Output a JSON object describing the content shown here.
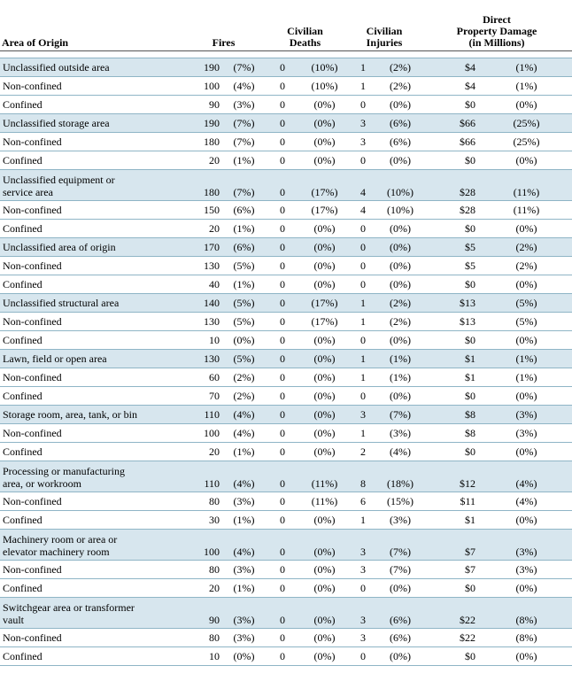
{
  "headers": {
    "area": "Area of Origin",
    "fires": "Fires",
    "deaths": "Civilian\nDeaths",
    "injuries": "Civilian\nInjuries",
    "damage": "Direct\nProperty Damage\n(in Millions)"
  },
  "rows": [
    {
      "area": "Unclassified outside area",
      "cat": true,
      "fires": "190",
      "fires_pct": "(7%)",
      "deaths": "0",
      "deaths_pct": "(10%)",
      "injuries": "1",
      "injuries_pct": "(2%)",
      "damage": "$4",
      "damage_pct": "(1%)"
    },
    {
      "area": "Non-confined",
      "fires": "100",
      "fires_pct": "(4%)",
      "deaths": "0",
      "deaths_pct": "(10%)",
      "injuries": "1",
      "injuries_pct": "(2%)",
      "damage": "$4",
      "damage_pct": "(1%)"
    },
    {
      "area": "Confined",
      "fires": "90",
      "fires_pct": "(3%)",
      "deaths": "0",
      "deaths_pct": "(0%)",
      "injuries": "0",
      "injuries_pct": "(0%)",
      "damage": "$0",
      "damage_pct": "(0%)"
    },
    {
      "area": "Unclassified storage area",
      "cat": true,
      "fires": "190",
      "fires_pct": "(7%)",
      "deaths": "0",
      "deaths_pct": "(0%)",
      "injuries": "3",
      "injuries_pct": "(6%)",
      "damage": "$66",
      "damage_pct": "(25%)"
    },
    {
      "area": "Non-confined",
      "fires": "180",
      "fires_pct": "(7%)",
      "deaths": "0",
      "deaths_pct": "(0%)",
      "injuries": "3",
      "injuries_pct": "(6%)",
      "damage": "$66",
      "damage_pct": "(25%)"
    },
    {
      "area": "Confined",
      "fires": "20",
      "fires_pct": "(1%)",
      "deaths": "0",
      "deaths_pct": "(0%)",
      "injuries": "0",
      "injuries_pct": "(0%)",
      "damage": "$0",
      "damage_pct": "(0%)"
    },
    {
      "area": "Unclassified equipment or\n    service area",
      "cat": true,
      "tall": true,
      "fires": "180",
      "fires_pct": "(7%)",
      "deaths": "0",
      "deaths_pct": "(17%)",
      "injuries": "4",
      "injuries_pct": "(10%)",
      "damage": "$28",
      "damage_pct": "(11%)"
    },
    {
      "area": "Non-confined",
      "fires": "150",
      "fires_pct": "(6%)",
      "deaths": "0",
      "deaths_pct": "(17%)",
      "injuries": "4",
      "injuries_pct": "(10%)",
      "damage": "$28",
      "damage_pct": "(11%)"
    },
    {
      "area": "Confined",
      "fires": "20",
      "fires_pct": "(1%)",
      "deaths": "0",
      "deaths_pct": "(0%)",
      "injuries": "0",
      "injuries_pct": "(0%)",
      "damage": "$0",
      "damage_pct": "(0%)"
    },
    {
      "area": "Unclassified area of origin",
      "cat": true,
      "fires": "170",
      "fires_pct": "(6%)",
      "deaths": "0",
      "deaths_pct": "(0%)",
      "injuries": "0",
      "injuries_pct": "(0%)",
      "damage": "$5",
      "damage_pct": "(2%)"
    },
    {
      "area": "Non-confined",
      "fires": "130",
      "fires_pct": "(5%)",
      "deaths": "0",
      "deaths_pct": "(0%)",
      "injuries": "0",
      "injuries_pct": "(0%)",
      "damage": "$5",
      "damage_pct": "(2%)"
    },
    {
      "area": "Confined",
      "fires": "40",
      "fires_pct": "(1%)",
      "deaths": "0",
      "deaths_pct": "(0%)",
      "injuries": "0",
      "injuries_pct": "(0%)",
      "damage": "$0",
      "damage_pct": "(0%)"
    },
    {
      "area": "Unclassified structural area",
      "cat": true,
      "fires": "140",
      "fires_pct": "(5%)",
      "deaths": "0",
      "deaths_pct": "(17%)",
      "injuries": "1",
      "injuries_pct": "(2%)",
      "damage": "$13",
      "damage_pct": "(5%)"
    },
    {
      "area": "Non-confined",
      "fires": "130",
      "fires_pct": "(5%)",
      "deaths": "0",
      "deaths_pct": "(17%)",
      "injuries": "1",
      "injuries_pct": "(2%)",
      "damage": "$13",
      "damage_pct": "(5%)"
    },
    {
      "area": "Confined",
      "fires": "10",
      "fires_pct": "(0%)",
      "deaths": "0",
      "deaths_pct": "(0%)",
      "injuries": "0",
      "injuries_pct": "(0%)",
      "damage": "$0",
      "damage_pct": "(0%)"
    },
    {
      "area": "Lawn, field or open area",
      "cat": true,
      "fires": "130",
      "fires_pct": "(5%)",
      "deaths": "0",
      "deaths_pct": "(0%)",
      "injuries": "1",
      "injuries_pct": "(1%)",
      "damage": "$1",
      "damage_pct": "(1%)"
    },
    {
      "area": "Non-confined",
      "fires": "60",
      "fires_pct": "(2%)",
      "deaths": "0",
      "deaths_pct": "(0%)",
      "injuries": "1",
      "injuries_pct": "(1%)",
      "damage": "$1",
      "damage_pct": "(1%)"
    },
    {
      "area": "Confined",
      "fires": "70",
      "fires_pct": "(2%)",
      "deaths": "0",
      "deaths_pct": "(0%)",
      "injuries": "0",
      "injuries_pct": "(0%)",
      "damage": "$0",
      "damage_pct": "(0%)"
    },
    {
      "area": "Storage room, area, tank, or bin",
      "cat": true,
      "fires": "110",
      "fires_pct": "(4%)",
      "deaths": "0",
      "deaths_pct": "(0%)",
      "injuries": "3",
      "injuries_pct": "(7%)",
      "damage": "$8",
      "damage_pct": "(3%)"
    },
    {
      "area": "Non-confined",
      "fires": "100",
      "fires_pct": "(4%)",
      "deaths": "0",
      "deaths_pct": "(0%)",
      "injuries": "1",
      "injuries_pct": "(3%)",
      "damage": "$8",
      "damage_pct": "(3%)"
    },
    {
      "area": "Confined",
      "fires": "20",
      "fires_pct": "(1%)",
      "deaths": "0",
      "deaths_pct": "(0%)",
      "injuries": "2",
      "injuries_pct": "(4%)",
      "damage": "$0",
      "damage_pct": "(0%)"
    },
    {
      "area": "Processing or manufacturing\n    area, or workroom",
      "cat": true,
      "tall": true,
      "fires": "110",
      "fires_pct": "(4%)",
      "deaths": "0",
      "deaths_pct": "(11%)",
      "injuries": "8",
      "injuries_pct": "(18%)",
      "damage": "$12",
      "damage_pct": "(4%)"
    },
    {
      "area": "Non-confined",
      "fires": "80",
      "fires_pct": "(3%)",
      "deaths": "0",
      "deaths_pct": "(11%)",
      "injuries": "6",
      "injuries_pct": "(15%)",
      "damage": "$11",
      "damage_pct": "(4%)"
    },
    {
      "area": "Confined",
      "fires": "30",
      "fires_pct": "(1%)",
      "deaths": "0",
      "deaths_pct": "(0%)",
      "injuries": "1",
      "injuries_pct": "(3%)",
      "damage": "$1",
      "damage_pct": "(0%)"
    },
    {
      "area": "Machinery room or area or\n    elevator machinery room",
      "cat": true,
      "tall": true,
      "fires": "100",
      "fires_pct": "(4%)",
      "deaths": "0",
      "deaths_pct": "(0%)",
      "injuries": "3",
      "injuries_pct": "(7%)",
      "damage": "$7",
      "damage_pct": "(3%)"
    },
    {
      "area": "Non-confined",
      "fires": "80",
      "fires_pct": "(3%)",
      "deaths": "0",
      "deaths_pct": "(0%)",
      "injuries": "3",
      "injuries_pct": "(7%)",
      "damage": "$7",
      "damage_pct": "(3%)"
    },
    {
      "area": "Confined",
      "fires": "20",
      "fires_pct": "(1%)",
      "deaths": "0",
      "deaths_pct": "(0%)",
      "injuries": "0",
      "injuries_pct": "(0%)",
      "damage": "$0",
      "damage_pct": "(0%)"
    },
    {
      "area": "Switchgear area or transformer\n    vault",
      "cat": true,
      "tall": true,
      "fires": "90",
      "fires_pct": "(3%)",
      "deaths": "0",
      "deaths_pct": "(0%)",
      "injuries": "3",
      "injuries_pct": "(6%)",
      "damage": "$22",
      "damage_pct": "(8%)"
    },
    {
      "area": "Non-confined",
      "fires": "80",
      "fires_pct": "(3%)",
      "deaths": "0",
      "deaths_pct": "(0%)",
      "injuries": "3",
      "injuries_pct": "(6%)",
      "damage": "$22",
      "damage_pct": "(8%)"
    },
    {
      "area": "Confined",
      "fires": "10",
      "fires_pct": "(0%)",
      "deaths": "0",
      "deaths_pct": "(0%)",
      "injuries": "0",
      "injuries_pct": "(0%)",
      "damage": "$0",
      "damage_pct": "(0%)"
    }
  ]
}
